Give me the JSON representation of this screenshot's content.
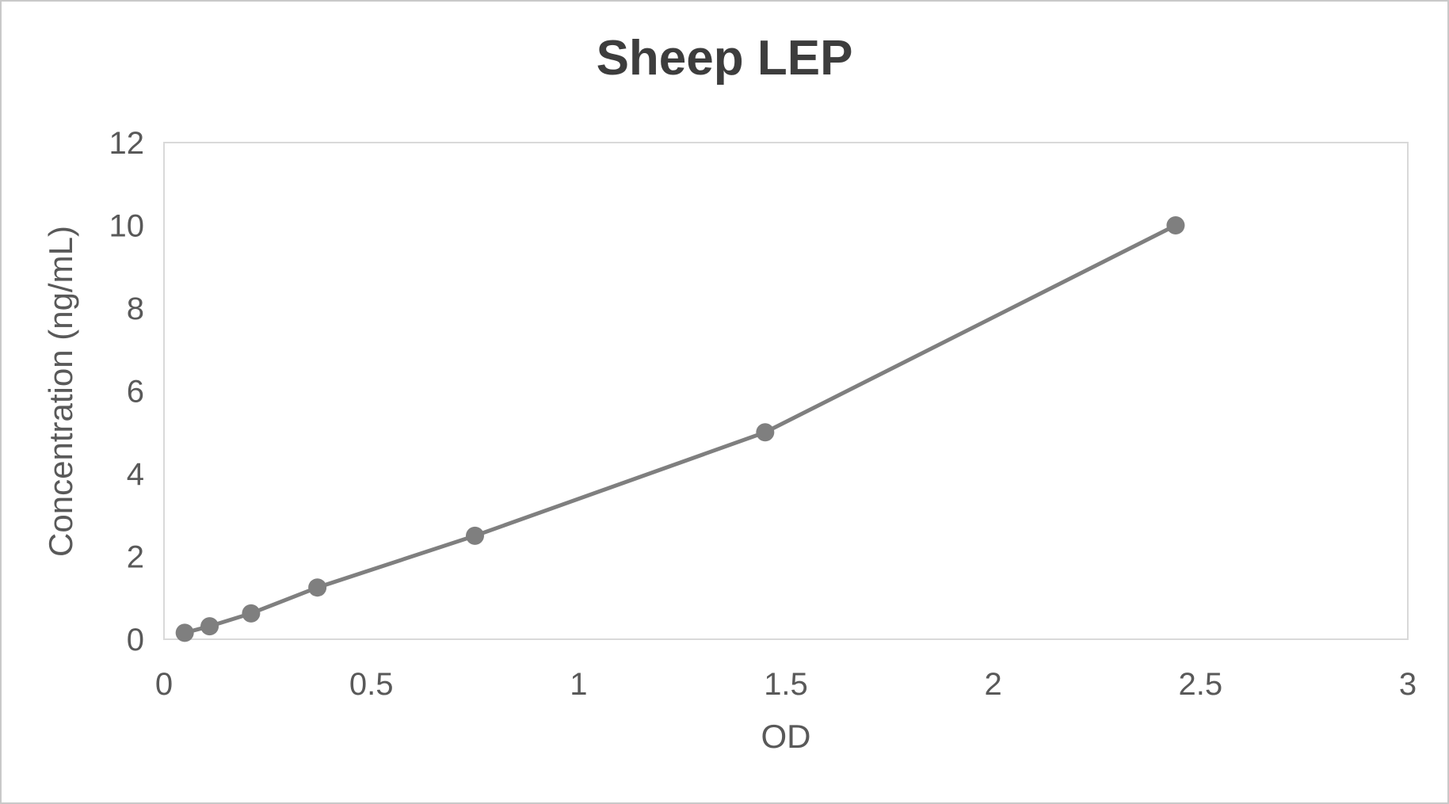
{
  "window": {
    "background": "#ffffff",
    "outer_border_color": "#c9c9c9"
  },
  "chart_data": {
    "type": "line",
    "title": "Sheep LEP",
    "xlabel": "OD",
    "ylabel": "Concentration (ng/mL)",
    "x": [
      0.05,
      0.11,
      0.21,
      0.37,
      0.75,
      1.45,
      2.44
    ],
    "y": [
      0.156,
      0.313,
      0.625,
      1.25,
      2.5,
      5,
      10
    ],
    "xlim": [
      0,
      3
    ],
    "ylim": [
      0,
      12
    ],
    "x_ticks": [
      0,
      0.5,
      1,
      1.5,
      2,
      2.5,
      3
    ],
    "x_tick_labels": [
      "0",
      "0.5",
      "1",
      "1.5",
      "2",
      "2.5",
      "3"
    ],
    "y_ticks": [
      0,
      2,
      4,
      6,
      8,
      10,
      12
    ],
    "y_tick_labels": [
      "0",
      "2",
      "4",
      "6",
      "8",
      "10",
      "12"
    ],
    "grid": false,
    "legend": "none",
    "marker": "circle",
    "colors": {
      "line": "#7f7f7f",
      "marker": "#7f7f7f",
      "plot_border": "#d9d9d9",
      "tick_label": "#595959",
      "title": "#3d3d3d"
    }
  }
}
